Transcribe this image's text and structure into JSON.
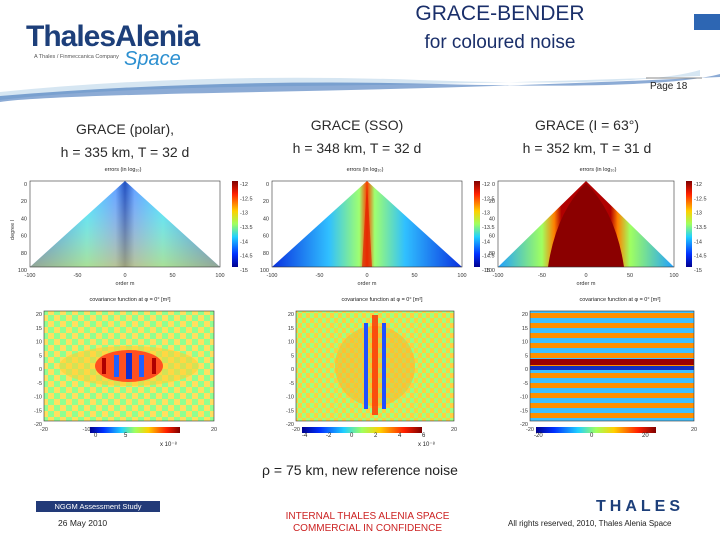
{
  "header": {
    "logo_main": "ThalesAlenia",
    "logo_subtitle": "A Thales / Finmeccanica Company",
    "logo_space": "Space",
    "title_line1": "GRACE-BENDER",
    "title_line2": "for coloured noise",
    "page_label": "Page 18"
  },
  "columns": [
    {
      "title_line1": "GRACE (polar),",
      "title_line2": "h = 335 km, T = 32 d",
      "error_plot_title": "errors (in log₁₀)",
      "cov_plot_title": "covariance function at φ = 0° [m²]",
      "cov_colorbar_exp": "x 10⁻⁸",
      "cov_colorbar_ticks": [
        "0",
        "5"
      ]
    },
    {
      "title_line1": "GRACE (SSO)",
      "title_line2": "h = 348 km, T = 32 d",
      "error_plot_title": "errors (in log₁₀)",
      "cov_plot_title": "covariance function at φ = 0° [m²]",
      "cov_colorbar_exp": "x 10⁻⁸",
      "cov_colorbar_ticks": [
        "-4",
        "-2",
        "0",
        "2",
        "4",
        "6"
      ]
    },
    {
      "title_line1": "GRACE (I = 63°)",
      "title_line2": "h = 352 km, T = 31 d",
      "error_plot_title": "errors (in log₁₀)",
      "cov_plot_title": "covariance function at φ = 0° [m²]",
      "cov_colorbar_exp": "",
      "cov_colorbar_ticks": [
        "-20",
        "0",
        "20"
      ]
    }
  ],
  "error_plot": {
    "xlabel": "order m",
    "ylabel": "degree l",
    "xticks": [
      "-100",
      "-50",
      "0",
      "50",
      "100"
    ],
    "yticks": [
      "0",
      "20",
      "40",
      "60",
      "80",
      "100"
    ],
    "cbar_ticks": [
      "-12",
      "-12.5",
      "-13",
      "-13.5",
      "-14",
      "-14.5",
      "-15"
    ]
  },
  "cov_plot": {
    "ylabel": "φ m [°]",
    "xticks": [
      "-20",
      "-10",
      "0",
      "10",
      "20"
    ],
    "yticks": [
      "20",
      "15",
      "10",
      "5",
      "0",
      "-5",
      "-10",
      "-15",
      "-20"
    ]
  },
  "caption": "ρ = 75 km, new reference noise",
  "footer": {
    "study_label": "NGGM Assessment Study",
    "date": "26 May 2010",
    "confidential_line1": "INTERNAL THALES ALENIA SPACE",
    "confidential_line2": "COMMERCIAL IN CONFIDENCE",
    "thales_logo": "THALES",
    "rights": "All rights reserved, 2010, Thales Alenia Space"
  },
  "colors": {
    "brand_blue": "#1d3f7a",
    "accent_blue": "#2b8fd0",
    "confidential_red": "#cc2222"
  }
}
